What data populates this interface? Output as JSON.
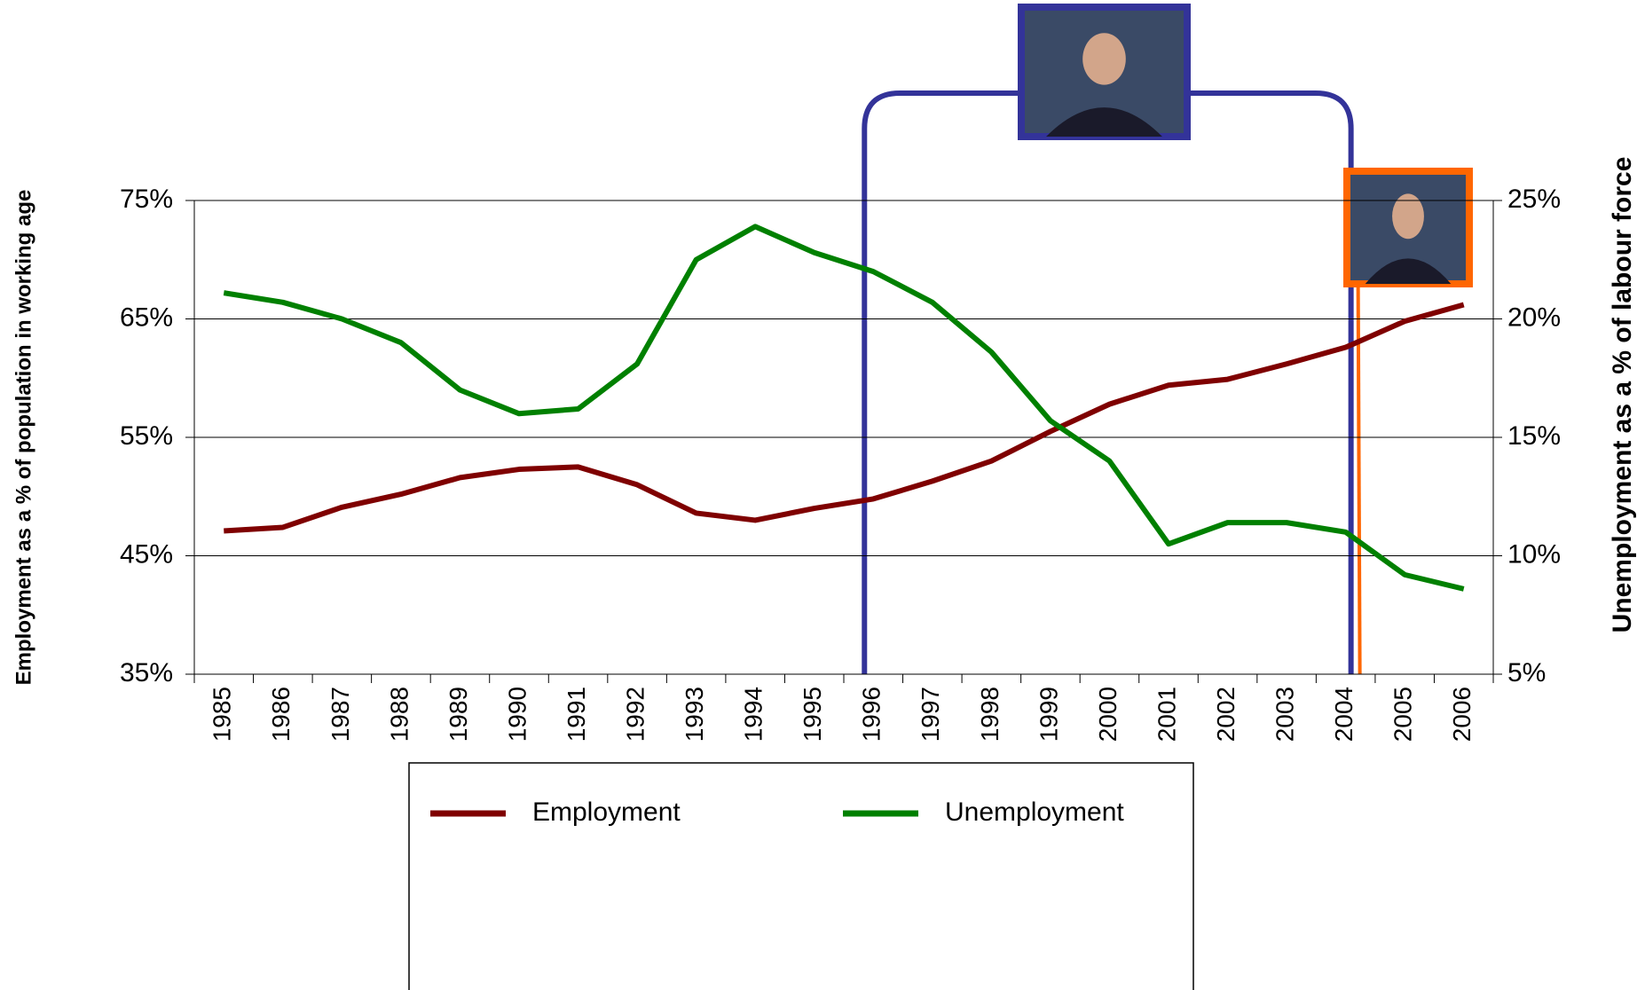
{
  "chart_data": {
    "type": "line",
    "y_label": "Employment as a % of population in working age",
    "y2_label": "Unemployment as a % of labour force",
    "categories": [
      "1985",
      "1986",
      "1987",
      "1988",
      "1989",
      "1990",
      "1991",
      "1992",
      "1993",
      "1994",
      "1995",
      "1996",
      "1997",
      "1998",
      "1999",
      "2000",
      "2001",
      "2002",
      "2003",
      "2004",
      "2005",
      "2006"
    ],
    "series": [
      {
        "name": "Employment",
        "color": "#7f0000",
        "axis": "y",
        "values": [
          47.1,
          47.4,
          49.1,
          50.2,
          51.6,
          52.3,
          52.5,
          51.0,
          48.6,
          48.0,
          49.0,
          49.8,
          51.3,
          53.0,
          55.5,
          57.8,
          59.4,
          59.9,
          61.2,
          62.6,
          64.8,
          66.2
        ]
      },
      {
        "name": "Unemployment",
        "color": "#008000",
        "axis": "y2",
        "values": [
          21.1,
          20.7,
          20.0,
          19.0,
          17.0,
          16.0,
          16.2,
          18.1,
          22.5,
          23.9,
          22.8,
          22.0,
          20.7,
          18.6,
          15.7,
          14.0,
          10.5,
          11.4,
          11.4,
          11.0,
          9.2,
          8.6
        ]
      }
    ],
    "ylim": [
      35,
      75
    ],
    "yticks": [
      {
        "value": 35,
        "label": "35%"
      },
      {
        "value": 45,
        "label": "45%"
      },
      {
        "value": 55,
        "label": "55%"
      },
      {
        "value": 65,
        "label": "65%"
      },
      {
        "value": 75,
        "label": "75%"
      }
    ],
    "y2lim": [
      5,
      25
    ],
    "y2ticks": [
      {
        "value": 5,
        "label": "5%"
      },
      {
        "value": 10,
        "label": "10%"
      },
      {
        "value": 15,
        "label": "15%"
      },
      {
        "value": 20,
        "label": "20%"
      },
      {
        "value": 25,
        "label": "25%"
      }
    ],
    "grid": true,
    "legend": "bottom"
  }
}
